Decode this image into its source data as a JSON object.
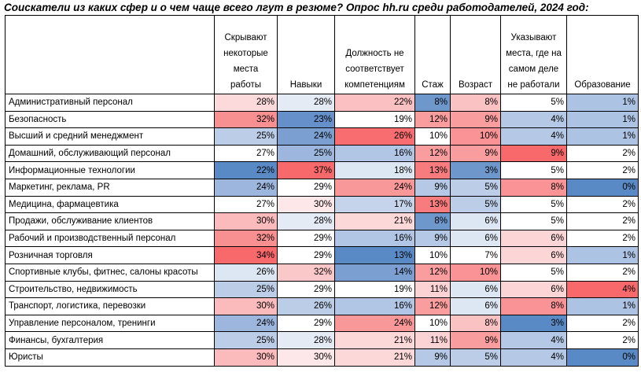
{
  "title": "Соискатели из каких сфер и о чем чаще всего лгут в резюме? Опрос hh.ru среди работодателей, 2024 год:",
  "headers": [
    "",
    "Скрывают некоторые места работы",
    "Навыки",
    "Должность не соответствует компетенциям",
    "Стаж",
    "Возраст",
    "Указывают места, где на самом деле не работали",
    "Образование"
  ],
  "colors": {
    "high": "#f8696b",
    "mid": "#ffffff",
    "low": "#5a8ac6"
  },
  "rows": [
    {
      "name": "Административный персонал",
      "values": [
        "28%",
        "28%",
        "22%",
        "8%",
        "8%",
        "5%",
        "1%"
      ],
      "colors": [
        "#fcdadb",
        "#e4ebf5",
        "#fbc0c1",
        "#6e98cc",
        "#fbc2c3",
        "#ffffff",
        "#adc3e4"
      ]
    },
    {
      "name": "Безопасность",
      "values": [
        "32%",
        "23%",
        "19%",
        "12%",
        "9%",
        "4%",
        "1%"
      ],
      "colors": [
        "#f88f90",
        "#6690ca",
        "#ffffff",
        "#fa9d9e",
        "#fa9d9e",
        "#b5c9e6",
        "#adc3e4"
      ]
    },
    {
      "name": "Высший и средний менеджмент",
      "values": [
        "25%",
        "24%",
        "26%",
        "10%",
        "10%",
        "4%",
        "1%"
      ],
      "colors": [
        "#bccde8",
        "#7a9fd0",
        "#f86e70",
        "#ffffff",
        "#f99395",
        "#b5c9e6",
        "#adc3e4"
      ]
    },
    {
      "name": "Домашний, обслуживающий персонал",
      "values": [
        "27%",
        "25%",
        "16%",
        "12%",
        "9%",
        "9%",
        "2%"
      ],
      "colors": [
        "#ffffff",
        "#9db6dd",
        "#b1c5e5",
        "#fa9d9e",
        "#fa9d9e",
        "#f8696b",
        "#ffffff"
      ]
    },
    {
      "name": "Информационные технологии",
      "values": [
        "22%",
        "37%",
        "18%",
        "13%",
        "3%",
        "5%",
        "2%"
      ],
      "colors": [
        "#5a8ac6",
        "#f8696b",
        "#dde6f3",
        "#f87c7e",
        "#6e98cc",
        "#ffffff",
        "#ffffff"
      ]
    },
    {
      "name": "Маркетинг, реклама, PR",
      "values": [
        "24%",
        "29%",
        "24%",
        "9%",
        "5%",
        "8%",
        "0%"
      ],
      "colors": [
        "#9db6dd",
        "#ffffff",
        "#f99899",
        "#b5c9e6",
        "#bccde8",
        "#f99395",
        "#5a8ac6"
      ]
    },
    {
      "name": "Медицина, фармацевтика",
      "values": [
        "27%",
        "30%",
        "17%",
        "13%",
        "5%",
        "5%",
        "2%"
      ],
      "colors": [
        "#ffffff",
        "#fde7e8",
        "#c5d4eb",
        "#f87c7e",
        "#bccde8",
        "#ffffff",
        "#ffffff"
      ]
    },
    {
      "name": "Продажи, обслуживание клиентов",
      "values": [
        "30%",
        "28%",
        "21%",
        "8%",
        "6%",
        "5%",
        "2%"
      ],
      "colors": [
        "#fbbabb",
        "#e4ebf5",
        "#fcd8d9",
        "#6e98cc",
        "#dde6f3",
        "#ffffff",
        "#ffffff"
      ]
    },
    {
      "name": "Рабочий и производственный персонал",
      "values": [
        "32%",
        "29%",
        "16%",
        "9%",
        "6%",
        "6%",
        "2%"
      ],
      "colors": [
        "#f88f90",
        "#ffffff",
        "#b1c5e5",
        "#b5c9e6",
        "#dde6f3",
        "#fcd5d6",
        "#ffffff"
      ]
    },
    {
      "name": "Розничная торговля",
      "values": [
        "34%",
        "29%",
        "13%",
        "10%",
        "7%",
        "6%",
        "1%"
      ],
      "colors": [
        "#f8696b",
        "#ffffff",
        "#5a8ac6",
        "#ffffff",
        "#ffffff",
        "#fcd5d6",
        "#adc3e4"
      ]
    },
    {
      "name": "Спортивные клубы, фитнес, салоны красоты",
      "values": [
        "26%",
        "32%",
        "14%",
        "12%",
        "10%",
        "5%",
        "2%"
      ],
      "colors": [
        "#dde6f3",
        "#fbc8c9",
        "#7a9fd0",
        "#fa9d9e",
        "#f99395",
        "#ffffff",
        "#ffffff"
      ]
    },
    {
      "name": "Строительство, недвижимость",
      "values": [
        "25%",
        "29%",
        "19%",
        "11%",
        "6%",
        "6%",
        "4%"
      ],
      "colors": [
        "#bccde8",
        "#ffffff",
        "#ffffff",
        "#fcd3d4",
        "#dde6f3",
        "#fcd5d6",
        "#f8696b"
      ]
    },
    {
      "name": "Транспорт, логистика, перевозки",
      "values": [
        "30%",
        "26%",
        "16%",
        "12%",
        "6%",
        "8%",
        "1%"
      ],
      "colors": [
        "#fbbabb",
        "#bccde8",
        "#b1c5e5",
        "#fa9d9e",
        "#dde6f3",
        "#f99395",
        "#adc3e4"
      ]
    },
    {
      "name": "Управление персоналом, тренинги",
      "values": [
        "24%",
        "29%",
        "24%",
        "10%",
        "8%",
        "3%",
        "2%"
      ],
      "colors": [
        "#9db6dd",
        "#ffffff",
        "#f99899",
        "#ffffff",
        "#fbc2c3",
        "#5a8ac6",
        "#ffffff"
      ]
    },
    {
      "name": "Финансы, бухгалтерия",
      "values": [
        "25%",
        "28%",
        "21%",
        "11%",
        "9%",
        "4%",
        "2%"
      ],
      "colors": [
        "#bccde8",
        "#e4ebf5",
        "#fcd8d9",
        "#fcd3d4",
        "#fa9d9e",
        "#b5c9e6",
        "#ffffff"
      ]
    },
    {
      "name": "Юристы",
      "values": [
        "30%",
        "30%",
        "21%",
        "9%",
        "5%",
        "4%",
        "0%"
      ],
      "colors": [
        "#fbbabb",
        "#fde7e8",
        "#fcd8d9",
        "#b5c9e6",
        "#bccde8",
        "#b5c9e6",
        "#5a8ac6"
      ]
    }
  ]
}
